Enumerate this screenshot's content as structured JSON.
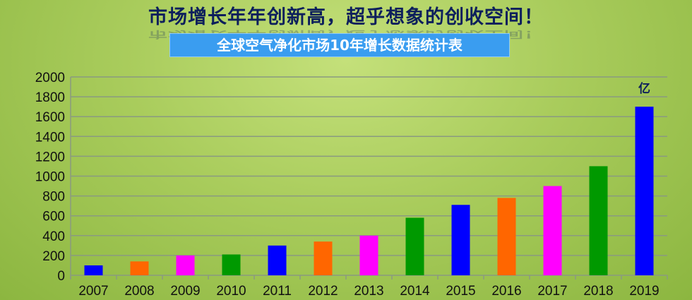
{
  "headline": "市场增长年年创新高，超乎想象的创收空间！",
  "chart_data": {
    "type": "bar",
    "title": "全球空气净化市场10年增长数据统计表",
    "unit_label": "亿",
    "categories": [
      "2007",
      "2008",
      "2009",
      "2010",
      "2011",
      "2012",
      "2013",
      "2014",
      "2015",
      "2016",
      "2017",
      "2018",
      "2019"
    ],
    "values": [
      100,
      140,
      200,
      210,
      300,
      340,
      400,
      580,
      710,
      780,
      900,
      1100,
      1700
    ],
    "colors": [
      "#0000ff",
      "#ff6600",
      "#ff00ff",
      "#009900",
      "#0000ff",
      "#ff6600",
      "#ff00ff",
      "#009900",
      "#0000ff",
      "#ff6600",
      "#ff00ff",
      "#009900",
      "#0000ff"
    ],
    "ylim": [
      0,
      2000
    ],
    "yticks": [
      0,
      200,
      400,
      600,
      800,
      1000,
      1200,
      1400,
      1600,
      1800,
      2000
    ],
    "grid": true
  }
}
